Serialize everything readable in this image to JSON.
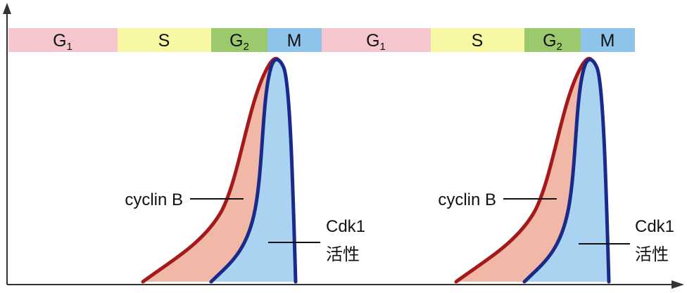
{
  "colors": {
    "G1": "#f6c6cf",
    "S": "#f7f7a4",
    "G2": "#9cc86e",
    "M": "#8ec4ea",
    "cyclin_fill": "#f1b7a7",
    "cyclin_line": "#a5191b",
    "cdk_fill": "#a9d3f0",
    "cdk_line": "#1a2a8a",
    "axis": "#333333"
  },
  "cycles": [
    {
      "phases": [
        {
          "id": "G1",
          "main": "G",
          "sub": "1"
        },
        {
          "id": "S",
          "main": "S",
          "sub": ""
        },
        {
          "id": "G2",
          "main": "G",
          "sub": "2"
        },
        {
          "id": "M",
          "main": "M",
          "sub": ""
        }
      ],
      "cyclin_label": "cyclin B",
      "cdk_label_line1": "Cdk1",
      "cdk_label_line2": "活性"
    },
    {
      "phases": [
        {
          "id": "G1",
          "main": "G",
          "sub": "1"
        },
        {
          "id": "S",
          "main": "S",
          "sub": ""
        },
        {
          "id": "G2",
          "main": "G",
          "sub": "2"
        },
        {
          "id": "M",
          "main": "M",
          "sub": ""
        }
      ],
      "cyclin_label": "cyclin B",
      "cdk_label_line1": "Cdk1",
      "cdk_label_line2": "活性"
    }
  ]
}
